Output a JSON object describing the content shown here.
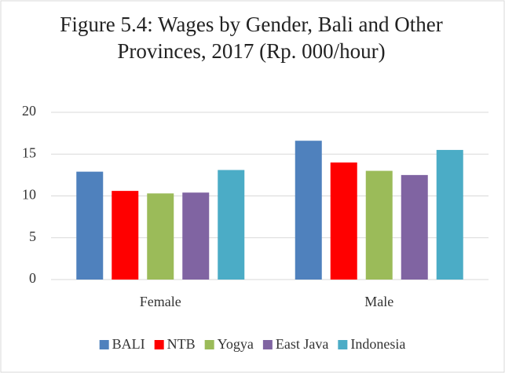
{
  "chart_data": {
    "type": "bar",
    "title": "Figure 5.4: Wages by Gender, Bali and Other Provinces, 2017 (Rp. 000/hour)",
    "categories": [
      "Female",
      "Male"
    ],
    "series": [
      {
        "name": "BALI",
        "color": "#4f81bd",
        "values": [
          12.9,
          16.6
        ]
      },
      {
        "name": "NTB",
        "color": "#ff0000",
        "values": [
          10.6,
          14.0
        ]
      },
      {
        "name": "Yogya",
        "color": "#9bbb59",
        "values": [
          10.3,
          13.0
        ]
      },
      {
        "name": "East Java",
        "color": "#8064a2",
        "values": [
          10.4,
          12.5
        ]
      },
      {
        "name": "Indonesia",
        "color": "#4bacc6",
        "values": [
          13.1,
          15.5
        ]
      }
    ],
    "ylim": [
      0,
      20
    ],
    "yticks": [
      0,
      5,
      10,
      15,
      20
    ],
    "grid": true,
    "legend": "bottom"
  }
}
